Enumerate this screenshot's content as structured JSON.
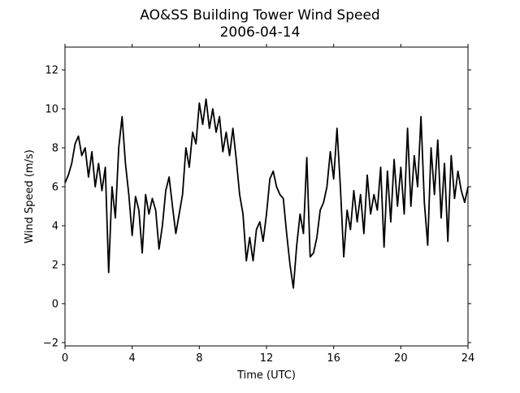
{
  "chart_data": {
    "type": "line",
    "title": "AO&SS Building Tower Wind Speed",
    "subtitle": "2006-04-14",
    "x_label": "Time (UTC)",
    "y_label": "Wind Speed (m/s)",
    "x": [
      0,
      0.2,
      0.4,
      0.6,
      0.8,
      1,
      1.2,
      1.4,
      1.6,
      1.8,
      2,
      2.2,
      2.4,
      2.6,
      2.8,
      3,
      3.2,
      3.4,
      3.6,
      3.8,
      4,
      4.2,
      4.4,
      4.6,
      4.8,
      5,
      5.2,
      5.4,
      5.6,
      5.8,
      6,
      6.2,
      6.4,
      6.6,
      6.8,
      7,
      7.2,
      7.4,
      7.6,
      7.8,
      8,
      8.2,
      8.4,
      8.6,
      8.8,
      9,
      9.2,
      9.4,
      9.6,
      9.8,
      10,
      10.2,
      10.4,
      10.6,
      10.8,
      11,
      11.2,
      11.4,
      11.6,
      11.8,
      12,
      12.2,
      12.4,
      12.6,
      12.8,
      13,
      13.2,
      13.4,
      13.6,
      13.8,
      14,
      14.2,
      14.4,
      14.6,
      14.8,
      15,
      15.2,
      15.4,
      15.6,
      15.8,
      16,
      16.2,
      16.4,
      16.6,
      16.8,
      17,
      17.2,
      17.4,
      17.6,
      17.8,
      18,
      18.2,
      18.4,
      18.6,
      18.8,
      19,
      19.2,
      19.4,
      19.6,
      19.8,
      20,
      20.2,
      20.4,
      20.6,
      20.8,
      21,
      21.2,
      21.4,
      21.6,
      21.8,
      22,
      22.2,
      22.4,
      22.6,
      22.8,
      23,
      23.2,
      23.4,
      23.6,
      23.8,
      24
    ],
    "series": [
      {
        "color": "#000000",
        "values": [
          6.2,
          6.6,
          7.2,
          8.2,
          8.6,
          7.6,
          8.0,
          6.5,
          7.8,
          6.0,
          7.2,
          5.8,
          7.0,
          1.6,
          6.0,
          4.4,
          8.0,
          9.6,
          7.2,
          5.6,
          3.5,
          5.5,
          4.8,
          2.6,
          5.6,
          4.6,
          5.4,
          4.8,
          2.8,
          4.0,
          5.8,
          6.5,
          5.0,
          3.6,
          4.6,
          5.6,
          8.0,
          7.0,
          8.8,
          8.2,
          10.3,
          9.2,
          10.5,
          9.0,
          10.0,
          8.8,
          9.6,
          7.8,
          8.8,
          7.6,
          9.0,
          7.4,
          5.6,
          4.6,
          2.2,
          3.4,
          2.2,
          3.8,
          4.2,
          3.2,
          4.6,
          6.4,
          6.8,
          6.0,
          5.6,
          5.4,
          3.6,
          2.0,
          0.8,
          3.0,
          4.6,
          3.6,
          7.5,
          2.4,
          2.6,
          3.4,
          4.8,
          5.2,
          6.0,
          7.8,
          6.4,
          9.0,
          6.0,
          2.4,
          4.8,
          3.8,
          5.8,
          4.2,
          5.6,
          3.6,
          6.6,
          4.6,
          5.6,
          4.8,
          7.0,
          2.9,
          6.8,
          4.2,
          7.4,
          5.0,
          7.0,
          4.6,
          9.0,
          5.0,
          7.6,
          6.0,
          9.6,
          5.2,
          3.0,
          8.0,
          5.6,
          8.4,
          4.4,
          7.2,
          3.2,
          7.6,
          5.4,
          6.8,
          5.8,
          5.2,
          6.0
        ]
      }
    ],
    "xlim": [
      0,
      24
    ],
    "xticks": [
      0,
      4,
      8,
      12,
      16,
      20,
      24
    ],
    "ylim": [
      -2.17,
      13.17
    ],
    "yticks": [
      {
        "value": -2,
        "label": "−2"
      },
      0,
      2,
      4,
      6,
      8,
      10,
      12
    ]
  }
}
